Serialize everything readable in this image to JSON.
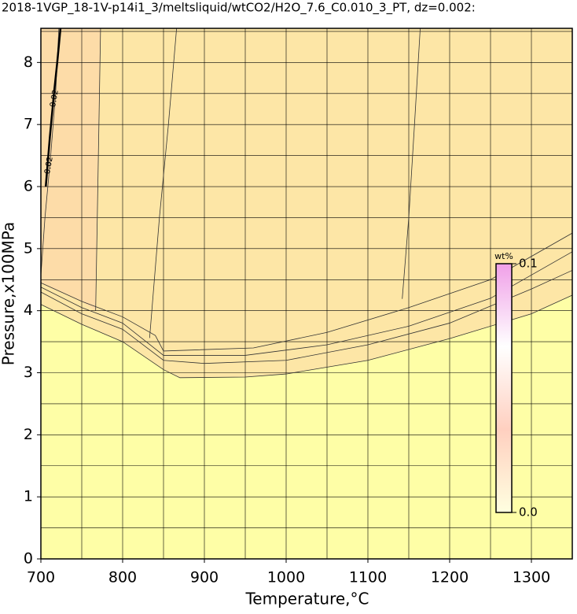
{
  "chart_data": {
    "type": "contour",
    "title": "2018-1VGP_18-1V-p14i1_3/meltsliquid/wtCO2/H2O_7.6_C0.010_3_PT, dz=0.002:",
    "x_label": "Temperature,°C",
    "y_label": "Pressure,x100MPa",
    "xlim": [
      700,
      1350
    ],
    "ylim": [
      0,
      8.55
    ],
    "xticks": [
      700,
      800,
      900,
      1000,
      1100,
      1200,
      1300
    ],
    "yticks": [
      0,
      1,
      2,
      3,
      4,
      5,
      6,
      7,
      8
    ],
    "xgrid": [
      700,
      750,
      800,
      850,
      900,
      950,
      1000,
      1050,
      1100,
      1150,
      1200,
      1250,
      1300
    ],
    "ygrid": [
      0.5,
      1,
      1.5,
      2,
      2.5,
      3,
      3.5,
      4,
      4.5,
      5,
      5.5,
      6,
      6.5,
      7,
      7.5,
      8,
      8.5
    ],
    "grid": true,
    "series": [
      {
        "color": "#333333",
        "x": [
          700,
          750,
          800,
          850,
          870,
          950,
          1000,
          1100,
          1200,
          1300,
          1350
        ],
        "y": [
          4.1,
          3.78,
          3.5,
          3.05,
          2.92,
          2.93,
          2.98,
          3.2,
          3.55,
          3.95,
          4.25
        ]
      },
      {
        "color": "#333333",
        "x": [
          700,
          750,
          800,
          850,
          900,
          1000,
          1100,
          1200,
          1300,
          1350
        ],
        "y": [
          4.3,
          3.95,
          3.7,
          3.2,
          3.15,
          3.2,
          3.45,
          3.8,
          4.35,
          4.65
        ]
      },
      {
        "color": "#333333",
        "x": [
          700,
          750,
          800,
          850,
          950,
          1050,
          1150,
          1250,
          1350
        ],
        "y": [
          4.38,
          4.05,
          3.8,
          3.28,
          3.28,
          3.45,
          3.75,
          4.2,
          4.95
        ]
      },
      {
        "color": "#333333",
        "x": [
          700,
          750,
          800,
          840,
          850,
          960,
          1050,
          1150,
          1250,
          1350
        ],
        "y": [
          4.45,
          4.15,
          3.9,
          3.6,
          3.35,
          3.4,
          3.65,
          4.05,
          4.5,
          5.25
        ]
      },
      {
        "color": "#333333",
        "x": [
          767,
          769,
          771,
          773
        ],
        "y": [
          4.0,
          5.5,
          7.0,
          8.55
        ]
      },
      {
        "color": "#333333",
        "x": [
          833,
          845,
          856,
          866
        ],
        "y": [
          3.56,
          5.5,
          7.0,
          8.55
        ]
      },
      {
        "color": "#333333",
        "x": [
          1142,
          1150,
          1157,
          1164
        ],
        "y": [
          4.19,
          5.5,
          7.0,
          8.55
        ]
      },
      {
        "color": "#333333",
        "x": [
          700,
          705,
          712,
          718,
          722
        ],
        "y": [
          4.57,
          5.5,
          6.5,
          7.5,
          8.55
        ]
      },
      {
        "color": "#000000",
        "x": [
          706,
          711,
          716,
          720,
          724
        ],
        "y": [
          6.0,
          6.8,
          7.5,
          8.0,
          8.55
        ]
      }
    ],
    "contour_labels": [
      "0.02",
      "0.02"
    ],
    "colorbar": {
      "label": "wt%",
      "clim": [
        0,
        0.1
      ],
      "colors": [
        "#ffffe0",
        "#ffd0c0",
        "#ffffff",
        "#f0a0e8"
      ],
      "ticks": [
        {
          "value": 0,
          "label": "0.0"
        },
        {
          "value": 0.1,
          "label": "0.1"
        }
      ]
    }
  }
}
